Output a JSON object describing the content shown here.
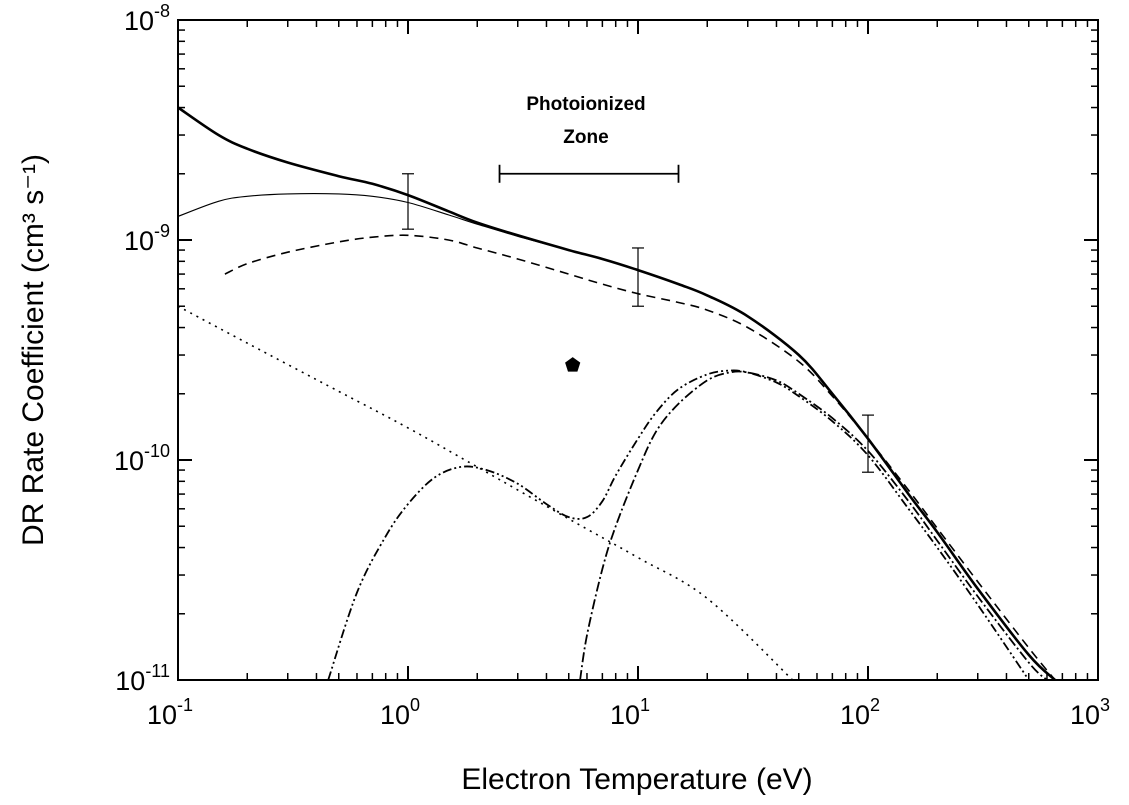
{
  "chart_data": {
    "type": "line",
    "title": "",
    "xlabel": "Electron Temperature (eV)",
    "ylabel": "DR Rate Coefficient (cm³ s⁻¹)",
    "xscale": "log",
    "yscale": "log",
    "xlim": [
      0.1,
      1000
    ],
    "ylim": [
      1e-11,
      1e-08
    ],
    "grid": false,
    "legend": "none",
    "x_ticks": [
      {
        "value": 0.1,
        "base": "10",
        "exp": "-1"
      },
      {
        "value": 1,
        "base": "10",
        "exp": "0"
      },
      {
        "value": 10,
        "base": "10",
        "exp": "1"
      },
      {
        "value": 100,
        "base": "10",
        "exp": "2"
      },
      {
        "value": 1000,
        "base": "10",
        "exp": "3"
      }
    ],
    "y_ticks": [
      {
        "value": 1e-11,
        "base": "10",
        "exp": "-11"
      },
      {
        "value": 1e-10,
        "base": "10",
        "exp": "-10"
      },
      {
        "value": 1e-09,
        "base": "10",
        "exp": "-9"
      },
      {
        "value": 1e-08,
        "base": "10",
        "exp": "-8"
      }
    ],
    "annotations": {
      "photoionized_zone": {
        "label_line1": "Photoionized",
        "label_line2": "Zone",
        "x_range": [
          2.5,
          15
        ],
        "y": 2e-09
      }
    },
    "series": [
      {
        "style": "thick-solid",
        "x": [
          0.1,
          0.15,
          0.2,
          0.3,
          0.5,
          0.7,
          1.0,
          1.5,
          2,
          3,
          5,
          7,
          10,
          15,
          20,
          30,
          50,
          70,
          100,
          150,
          200,
          300,
          500,
          650
        ],
        "y": [
          4e-09,
          3e-09,
          2.6e-09,
          2.25e-09,
          1.95e-09,
          1.8e-09,
          1.6e-09,
          1.35e-09,
          1.2e-09,
          1.05e-09,
          9e-10,
          8.2e-10,
          7.3e-10,
          6.3e-10,
          5.6e-10,
          4.5e-10,
          3e-10,
          2e-10,
          1.25e-10,
          7e-11,
          4.7e-11,
          2.6e-11,
          1.3e-11,
          1e-11
        ]
      },
      {
        "style": "thin-solid",
        "x": [
          0.1,
          0.15,
          0.2,
          0.3,
          0.5,
          0.7,
          1.0,
          1.5,
          2,
          3,
          5,
          7,
          10
        ],
        "y": [
          1.28e-09,
          1.5e-09,
          1.58e-09,
          1.62e-09,
          1.62e-09,
          1.58e-09,
          1.48e-09,
          1.3e-09,
          1.18e-09,
          1.04e-09,
          9e-10,
          8.2e-10,
          7.3e-10
        ]
      },
      {
        "style": "dashed",
        "x": [
          0.16,
          0.2,
          0.3,
          0.5,
          0.7,
          1.0,
          1.5,
          2,
          3,
          5,
          7,
          10,
          15,
          20,
          30,
          50,
          70,
          100,
          150,
          200,
          300,
          500,
          650
        ],
        "y": [
          7e-10,
          7.8e-10,
          8.8e-10,
          9.8e-10,
          1.03e-09,
          1.05e-09,
          1e-09,
          9.2e-10,
          8.2e-10,
          7e-10,
          6.3e-10,
          5.7e-10,
          5.2e-10,
          4.8e-10,
          4e-10,
          2.8e-10,
          1.95e-10,
          1.25e-10,
          7.3e-11,
          4.9e-11,
          2.8e-11,
          1.4e-11,
          1e-11
        ]
      },
      {
        "style": "dotted",
        "x": [
          0.1,
          0.2,
          0.5,
          1,
          2,
          5,
          10,
          20,
          47
        ],
        "y": [
          5e-10,
          3.4e-10,
          2.05e-10,
          1.4e-10,
          9.3e-11,
          5.4e-11,
          3.6e-11,
          2.35e-11,
          1e-11
        ]
      },
      {
        "style": "dash-dot-dot",
        "x": [
          0.45,
          0.6,
          0.8,
          1.0,
          1.3,
          1.7,
          2.2,
          3,
          4,
          5,
          6,
          7,
          8,
          10,
          12,
          15,
          20,
          25,
          30,
          40,
          50,
          70,
          100,
          150,
          200,
          300,
          500
        ],
        "y": [
          1e-11,
          2.5e-11,
          4.5e-11,
          6.3e-11,
          8.3e-11,
          9.3e-11,
          9e-11,
          7.8e-11,
          6.3e-11,
          5.5e-11,
          5.5e-11,
          6.5e-11,
          8.5e-11,
          1.25e-10,
          1.65e-10,
          2.1e-10,
          2.45e-10,
          2.55e-10,
          2.5e-10,
          2.25e-10,
          1.95e-10,
          1.5e-10,
          1.05e-10,
          6e-11,
          4e-11,
          2.2e-11,
          1e-11
        ]
      },
      {
        "style": "dash-dot",
        "x": [
          5.6,
          6,
          7,
          8,
          10,
          12,
          15,
          20,
          25,
          30,
          40,
          50,
          70,
          100,
          150,
          200,
          300,
          500,
          600
        ],
        "y": [
          1e-11,
          1.6e-11,
          3.2e-11,
          5e-11,
          9e-11,
          1.35e-10,
          1.8e-10,
          2.3e-10,
          2.5e-10,
          2.5e-10,
          2.3e-10,
          2e-10,
          1.55e-10,
          1.1e-10,
          6.5e-11,
          4.3e-11,
          2.4e-11,
          1.2e-11,
          1e-11
        ]
      }
    ],
    "error_bars": [
      {
        "x": 1,
        "y": 1.5e-09,
        "low": 1.12e-09,
        "high": 2e-09
      },
      {
        "x": 10,
        "y": 7e-10,
        "low": 5e-10,
        "high": 9.2e-10
      },
      {
        "x": 100,
        "y": 1.2e-10,
        "low": 8.8e-11,
        "high": 1.6e-10
      }
    ],
    "markers": [
      {
        "shape": "pentagon",
        "x": 5.2,
        "y": 2.7e-10
      }
    ]
  }
}
